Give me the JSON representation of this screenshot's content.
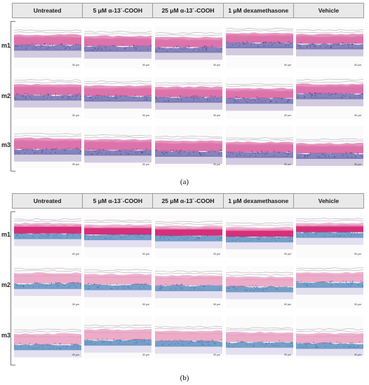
{
  "columns": [
    "Untreated",
    "5 μM α-13´-COOH",
    "25 μM α-13´-COOH",
    "1 μM dexamethasone",
    "Vehicle"
  ],
  "rows": [
    "m1",
    "m2",
    "m3"
  ],
  "scale_label": "50 μm",
  "panels": [
    {
      "id": "a",
      "caption": "(a)",
      "stain": "he",
      "colors": {
        "top": "#e07ab0",
        "mid": "#d65a9c",
        "base": "#6f6fb0",
        "dermis": "#d2cbe0"
      }
    },
    {
      "id": "b",
      "caption": "(b)",
      "stain": "alcian",
      "colors": {
        "top": "#e8a0c4",
        "mid": "#d01a6a",
        "base": "#5e8fc0",
        "dermis": "#e2dff0"
      }
    }
  ]
}
